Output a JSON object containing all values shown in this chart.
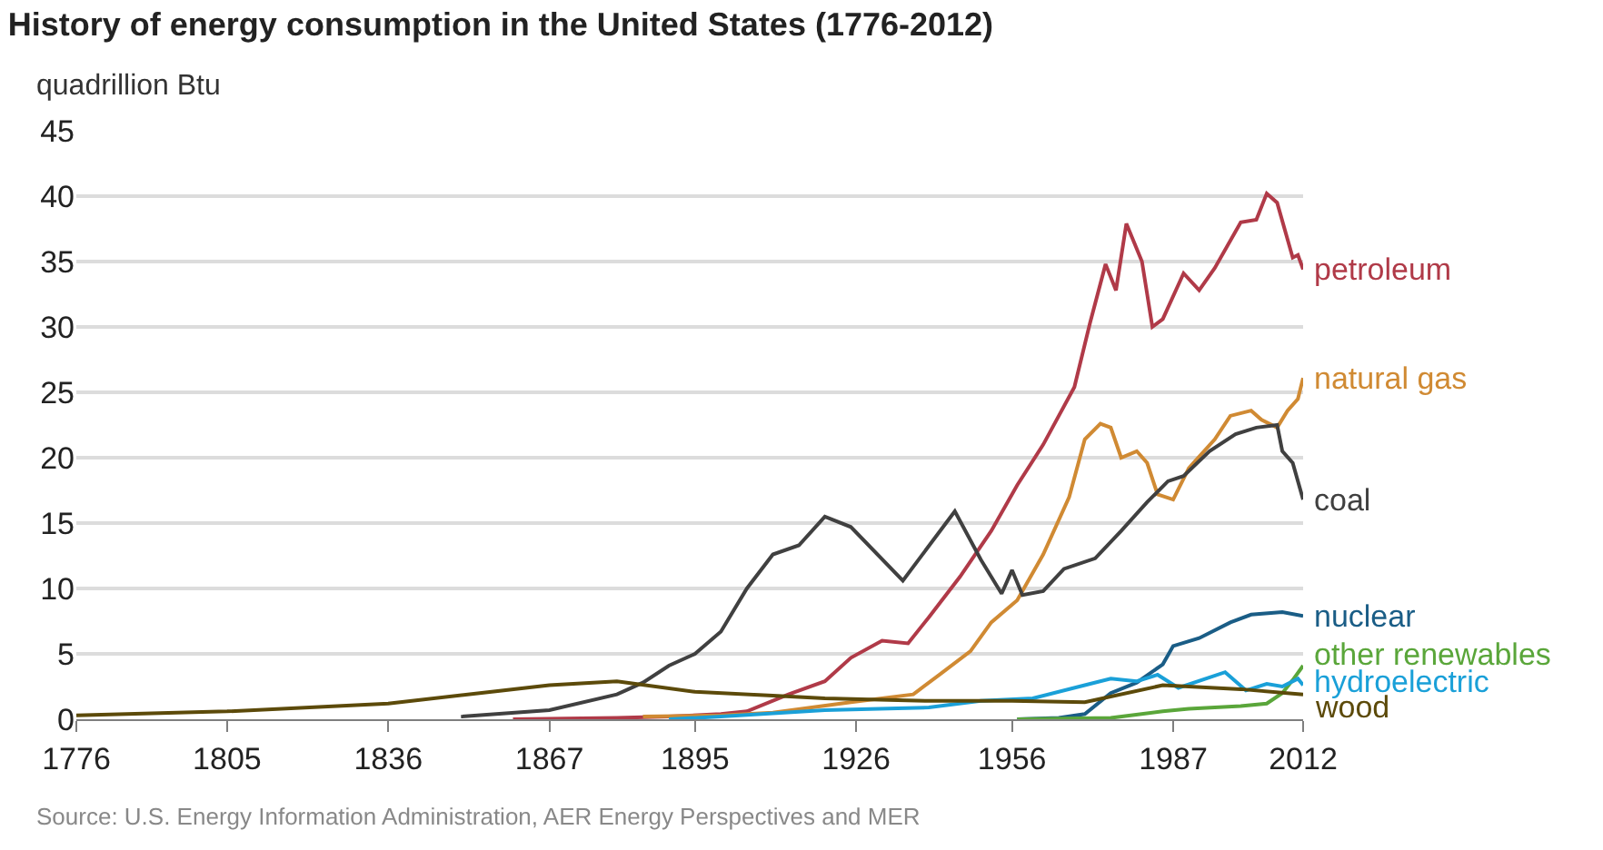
{
  "chart_data": {
    "type": "line",
    "title": "History of energy consumption in the United States (1776-2012)",
    "ylabel": "quadrillion Btu",
    "xlim": [
      1776,
      2012
    ],
    "xticks": [
      1776,
      1805,
      1836,
      1867,
      1895,
      1926,
      1956,
      1987,
      2012
    ],
    "ylim": [
      0,
      45
    ],
    "yticks": [
      0,
      5,
      10,
      15,
      20,
      25,
      30,
      35,
      40,
      45
    ],
    "grid": "y",
    "legend": false,
    "marker": "none",
    "line_style": "solid",
    "series": [
      {
        "name": "petroleum",
        "color": "#b03a48",
        "x": [
          1860,
          1880,
          1890,
          1900,
          1905,
          1913,
          1920,
          1925,
          1931,
          1936,
          1940,
          1946,
          1952,
          1957,
          1962,
          1968,
          1971,
          1974,
          1976,
          1978,
          1981,
          1983,
          1985,
          1989,
          1992,
          1995,
          2000,
          2003,
          2005,
          2007,
          2010,
          2011,
          2012
        ],
        "values": [
          0.0,
          0.1,
          0.2,
          0.4,
          0.6,
          1.9,
          2.9,
          4.7,
          6.0,
          5.8,
          7.8,
          10.9,
          14.4,
          17.9,
          21.0,
          25.4,
          30.3,
          34.8,
          32.8,
          37.9,
          35.0,
          30.0,
          30.6,
          34.1,
          32.8,
          34.5,
          38.0,
          38.2,
          40.2,
          39.5,
          35.3,
          35.5,
          34.4
        ]
      },
      {
        "name": "natural gas",
        "color": "#d08a33",
        "x": [
          1885,
          1900,
          1910,
          1925,
          1937,
          1942,
          1948,
          1952,
          1957,
          1962,
          1967,
          1970,
          1973,
          1975,
          1977,
          1980,
          1982,
          1984,
          1987,
          1990,
          1995,
          1998,
          2002,
          2004,
          2007,
          2009,
          2011,
          2012
        ],
        "values": [
          0.2,
          0.3,
          0.5,
          1.3,
          1.9,
          3.4,
          5.2,
          7.4,
          9.1,
          12.6,
          17.0,
          21.4,
          22.6,
          22.3,
          20.0,
          20.5,
          19.6,
          17.2,
          16.8,
          19.2,
          21.4,
          23.2,
          23.6,
          22.9,
          22.3,
          23.6,
          24.5,
          26.1
        ]
      },
      {
        "name": "coal",
        "color": "#404040",
        "x": [
          1850,
          1867,
          1880,
          1885,
          1890,
          1895,
          1900,
          1905,
          1910,
          1915,
          1920,
          1925,
          1935,
          1945,
          1950,
          1954,
          1956,
          1958,
          1962,
          1966,
          1972,
          1977,
          1982,
          1986,
          1989,
          1994,
          1999,
          2003,
          2007,
          2008,
          2010,
          2012
        ],
        "values": [
          0.2,
          0.7,
          1.9,
          2.8,
          4.1,
          5.0,
          6.7,
          10.0,
          12.6,
          13.3,
          15.5,
          14.7,
          10.6,
          15.9,
          12.2,
          9.6,
          11.4,
          9.5,
          9.8,
          11.5,
          12.3,
          14.4,
          16.6,
          18.2,
          18.6,
          20.5,
          21.8,
          22.3,
          22.5,
          20.5,
          19.6,
          16.8
        ]
      },
      {
        "name": "nuclear",
        "color": "#1a5d86",
        "x": [
          1957,
          1965,
          1970,
          1975,
          1980,
          1985,
          1987,
          1992,
          1998,
          2002,
          2008,
          2012
        ],
        "values": [
          0.0,
          0.1,
          0.4,
          2.0,
          2.8,
          4.2,
          5.6,
          6.2,
          7.4,
          8.0,
          8.2,
          7.9
        ]
      },
      {
        "name": "other renewables",
        "color": "#5aa63a",
        "x": [
          1957,
          1975,
          1985,
          1990,
          2000,
          2005,
          2008,
          2010,
          2012
        ],
        "values": [
          0.0,
          0.1,
          0.6,
          0.8,
          1.0,
          1.2,
          2.0,
          3.0,
          4.1
        ]
      },
      {
        "name": "hydroelectric",
        "color": "#1aa0d8",
        "x": [
          1890,
          1900,
          1920,
          1940,
          1950,
          1960,
          1970,
          1975,
          1980,
          1984,
          1988,
          1997,
          2001,
          2005,
          2008,
          2011,
          2012
        ],
        "values": [
          0.0,
          0.2,
          0.7,
          0.9,
          1.4,
          1.6,
          2.6,
          3.1,
          2.9,
          3.4,
          2.4,
          3.6,
          2.2,
          2.7,
          2.5,
          3.1,
          2.6
        ]
      },
      {
        "name": "wood",
        "color": "#5c4a0a",
        "x": [
          1776,
          1805,
          1836,
          1867,
          1880,
          1895,
          1910,
          1920,
          1940,
          1956,
          1970,
          1985,
          2000,
          2012
        ],
        "values": [
          0.3,
          0.6,
          1.2,
          2.6,
          2.9,
          2.1,
          1.8,
          1.6,
          1.4,
          1.4,
          1.3,
          2.6,
          2.3,
          1.9
        ]
      }
    ],
    "annotations": [
      "Source: U.S. Energy Information Administration, AER Energy Perspectives and MER"
    ]
  }
}
